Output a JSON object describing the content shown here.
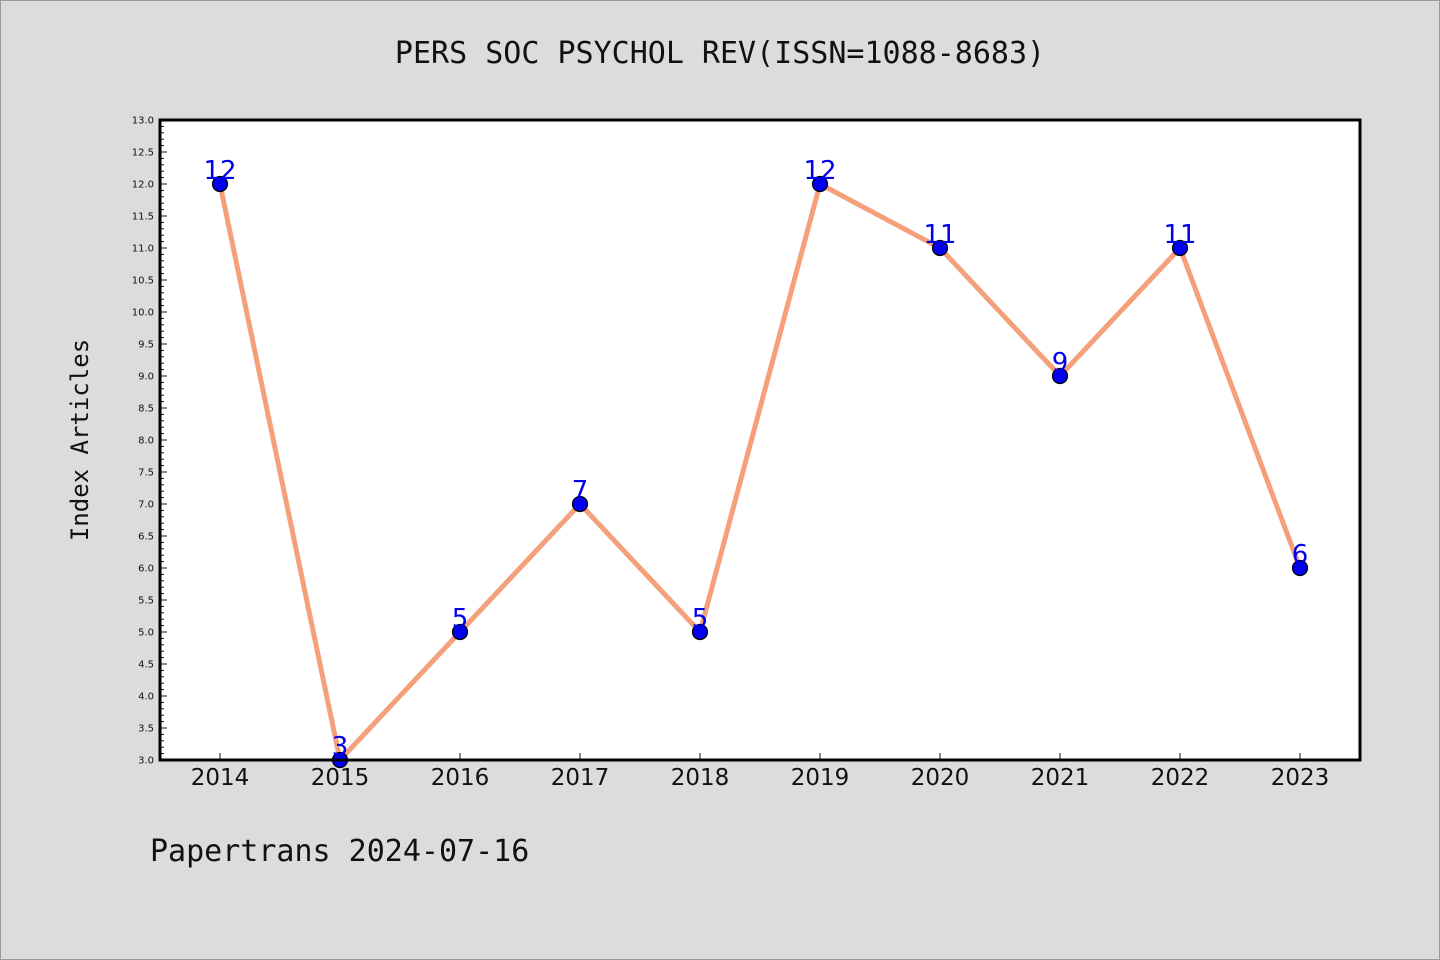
{
  "chart_data": {
    "type": "line",
    "title": "PERS SOC PSYCHOL REV(ISSN=1088-8683)",
    "xlabel": "",
    "ylabel": "Index Articles",
    "categories": [
      "2014",
      "2015",
      "2016",
      "2017",
      "2018",
      "2019",
      "2020",
      "2021",
      "2022",
      "2023"
    ],
    "series": [
      {
        "values": [
          12,
          3,
          5,
          7,
          5,
          12,
          11,
          9,
          11,
          6
        ]
      }
    ],
    "ylim": [
      3.0,
      13.0
    ],
    "y_major_step": 0.5,
    "y_minor_step": 0.1,
    "grid": false,
    "data_labels": true,
    "colors": {
      "line": "#f4a07a",
      "marker": "#0000ee",
      "data_label": "#0000ee",
      "plot_background": "#ffffff",
      "figure_background": "#dcdcdc"
    }
  },
  "footer": {
    "text": "Papertrans 2024-07-16"
  }
}
